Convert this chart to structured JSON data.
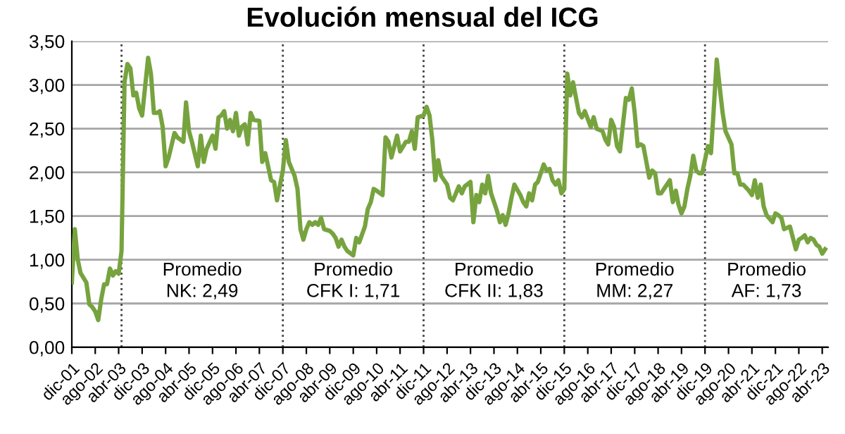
{
  "chart_data": {
    "type": "line",
    "title": "Evolución mensual del ICG",
    "series": [
      {
        "color": "#77a33f",
        "x": [
          "2001-12",
          "2002-01",
          "2002-02",
          "2002-03",
          "2002-05",
          "2002-06",
          "2002-07",
          "2002-08",
          "2002-09",
          "2002-10",
          "2002-11",
          "2002-12",
          "2003-01",
          "2003-02",
          "2003-03",
          "2003-04",
          "2003-05",
          "2003-06",
          "2003-07",
          "2003-08",
          "2003-09",
          "2003-10",
          "2003-11",
          "2003-12",
          "2004-01",
          "2004-02",
          "2004-03",
          "2004-04",
          "2004-05",
          "2004-06",
          "2004-07",
          "2004-08",
          "2004-09",
          "2004-11",
          "2004-12",
          "2005-02",
          "2005-03",
          "2005-04",
          "2005-05",
          "2005-07",
          "2005-08",
          "2005-09",
          "2005-10",
          "2005-12",
          "2006-01",
          "2006-02",
          "2006-03",
          "2006-04",
          "2006-05",
          "2006-06",
          "2006-07",
          "2006-08",
          "2006-09",
          "2006-10",
          "2006-11",
          "2006-12",
          "2007-01",
          "2007-02",
          "2007-04",
          "2007-05",
          "2007-06",
          "2007-07",
          "2007-08",
          "2007-09",
          "2007-10",
          "2007-12",
          "2008-01",
          "2008-02",
          "2008-04",
          "2008-05",
          "2008-06",
          "2008-07",
          "2008-08",
          "2008-09",
          "2008-10",
          "2008-11",
          "2008-12",
          "2009-01",
          "2009-02",
          "2009-04",
          "2009-05",
          "2009-06",
          "2009-07",
          "2009-08",
          "2009-09",
          "2009-10",
          "2009-12",
          "2010-01",
          "2010-02",
          "2010-04",
          "2010-05",
          "2010-06",
          "2010-07",
          "2010-08",
          "2010-10",
          "2010-11",
          "2010-12",
          "2011-01",
          "2011-02",
          "2011-03",
          "2011-04",
          "2011-06",
          "2011-07",
          "2011-08",
          "2011-09",
          "2011-10",
          "2011-12",
          "2012-01",
          "2012-02",
          "2012-03",
          "2012-04",
          "2012-05",
          "2012-06",
          "2012-08",
          "2012-09",
          "2012-10",
          "2012-11",
          "2012-12",
          "2013-01",
          "2013-02",
          "2013-04",
          "2013-05",
          "2013-06",
          "2013-07",
          "2013-08",
          "2013-09",
          "2013-10",
          "2013-11",
          "2014-01",
          "2014-02",
          "2014-03",
          "2014-04",
          "2014-05",
          "2014-06",
          "2014-07",
          "2014-09",
          "2014-10",
          "2014-11",
          "2014-12",
          "2015-01",
          "2015-02",
          "2015-03",
          "2015-05",
          "2015-06",
          "2015-07",
          "2015-08",
          "2015-09",
          "2015-10",
          "2015-11",
          "2015-12",
          "2016-01",
          "2016-02",
          "2016-03",
          "2016-04",
          "2016-05",
          "2016-06",
          "2016-07",
          "2016-09",
          "2016-10",
          "2016-11",
          "2017-01",
          "2017-02",
          "2017-03",
          "2017-04",
          "2017-05",
          "2017-06",
          "2017-07",
          "2017-08",
          "2017-09",
          "2017-10",
          "2017-11",
          "2017-12",
          "2018-01",
          "2018-02",
          "2018-03",
          "2018-04",
          "2018-05",
          "2018-06",
          "2018-07",
          "2018-08",
          "2018-09",
          "2018-10",
          "2018-12",
          "2019-01",
          "2019-02",
          "2019-03",
          "2019-04",
          "2019-05",
          "2019-06",
          "2019-07",
          "2019-08",
          "2019-09",
          "2019-10",
          "2019-11",
          "2020-01",
          "2020-02",
          "2020-03",
          "2020-04",
          "2020-05",
          "2020-06",
          "2020-07",
          "2020-09",
          "2020-10",
          "2020-11",
          "2020-12",
          "2021-01",
          "2021-03",
          "2021-04",
          "2021-05",
          "2021-06",
          "2021-07",
          "2021-08",
          "2021-09",
          "2021-11",
          "2021-12",
          "2022-01",
          "2022-02",
          "2022-03",
          "2022-05",
          "2022-06",
          "2022-07",
          "2022-08",
          "2022-09",
          "2022-10",
          "2022-11",
          "2022-12",
          "2023-01",
          "2023-02",
          "2023-03",
          "2023-04",
          "2023-05"
        ],
        "values": [
          0.74,
          1.35,
          1.0,
          0.85,
          0.74,
          0.49,
          0.46,
          0.41,
          0.31,
          0.54,
          0.72,
          0.72,
          0.9,
          0.82,
          0.87,
          0.84,
          1.1,
          3.03,
          3.24,
          3.19,
          2.88,
          2.91,
          2.73,
          2.65,
          2.98,
          3.31,
          3.13,
          2.68,
          2.68,
          2.7,
          2.52,
          2.07,
          2.17,
          2.45,
          2.4,
          2.35,
          2.8,
          2.47,
          2.35,
          2.07,
          2.42,
          2.12,
          2.27,
          2.42,
          2.27,
          2.63,
          2.65,
          2.7,
          2.5,
          2.6,
          2.47,
          2.68,
          2.42,
          2.52,
          2.55,
          2.32,
          2.68,
          2.6,
          2.59,
          2.12,
          2.22,
          2.07,
          1.91,
          1.89,
          1.68,
          2.02,
          2.37,
          2.12,
          1.96,
          1.81,
          1.35,
          1.23,
          1.35,
          1.43,
          1.4,
          1.43,
          1.4,
          1.48,
          1.35,
          1.33,
          1.3,
          1.25,
          1.15,
          1.23,
          1.15,
          1.1,
          1.05,
          1.25,
          1.2,
          1.38,
          1.58,
          1.66,
          1.81,
          1.79,
          1.74,
          2.4,
          2.35,
          2.17,
          2.3,
          2.42,
          2.24,
          2.35,
          2.35,
          2.47,
          2.27,
          2.63,
          2.65,
          2.75,
          2.65,
          2.37,
          1.91,
          2.14,
          1.96,
          1.86,
          1.71,
          1.68,
          1.76,
          1.84,
          1.76,
          1.84,
          1.89,
          1.43,
          1.74,
          1.66,
          1.86,
          1.76,
          1.96,
          1.76,
          1.56,
          1.43,
          1.51,
          1.4,
          1.53,
          1.71,
          1.86,
          1.74,
          1.66,
          1.61,
          1.76,
          1.68,
          1.86,
          1.89,
          2.09,
          2.02,
          2.04,
          1.91,
          1.86,
          1.91,
          1.76,
          1.81,
          3.13,
          2.88,
          3.03,
          2.85,
          2.68,
          2.63,
          2.7,
          2.52,
          2.63,
          2.5,
          2.47,
          2.37,
          2.32,
          2.6,
          2.52,
          2.3,
          2.24,
          2.55,
          2.85,
          2.83,
          2.96,
          2.68,
          2.3,
          2.32,
          2.3,
          2.12,
          1.94,
          2.02,
          1.99,
          1.76,
          1.76,
          1.81,
          1.91,
          1.66,
          1.79,
          1.63,
          1.53,
          1.61,
          1.81,
          1.96,
          2.19,
          2.02,
          1.99,
          1.99,
          2.3,
          2.22,
          2.73,
          3.29,
          2.98,
          2.68,
          2.47,
          2.32,
          1.99,
          1.99,
          1.86,
          1.86,
          1.79,
          1.74,
          1.91,
          1.71,
          1.86,
          1.61,
          1.51,
          1.43,
          1.53,
          1.51,
          1.48,
          1.35,
          1.38,
          1.25,
          1.12,
          1.23,
          1.25,
          1.28,
          1.2,
          1.25,
          1.23,
          1.17,
          1.15,
          1.07,
          1.12
        ]
      }
    ],
    "xlim": [
      "2001-12",
      "2023-06"
    ],
    "xticks": [
      {
        "value": "2001-12",
        "label": "dic-01"
      },
      {
        "value": "2002-08",
        "label": "ago-02"
      },
      {
        "value": "2003-04",
        "label": "abr-03"
      },
      {
        "value": "2003-12",
        "label": "dic-03"
      },
      {
        "value": "2004-08",
        "label": "ago-04"
      },
      {
        "value": "2005-04",
        "label": "abr-05"
      },
      {
        "value": "2005-12",
        "label": "dic-05"
      },
      {
        "value": "2006-08",
        "label": "ago-06"
      },
      {
        "value": "2007-04",
        "label": "abr-07"
      },
      {
        "value": "2007-12",
        "label": "dic-07"
      },
      {
        "value": "2008-08",
        "label": "ago-08"
      },
      {
        "value": "2009-04",
        "label": "abr-09"
      },
      {
        "value": "2009-12",
        "label": "dic-09"
      },
      {
        "value": "2010-08",
        "label": "ago-10"
      },
      {
        "value": "2011-04",
        "label": "abr-11"
      },
      {
        "value": "2011-12",
        "label": "dic-11"
      },
      {
        "value": "2012-08",
        "label": "ago-12"
      },
      {
        "value": "2013-04",
        "label": "abr-13"
      },
      {
        "value": "2013-12",
        "label": "dic-13"
      },
      {
        "value": "2014-08",
        "label": "ago-14"
      },
      {
        "value": "2015-04",
        "label": "abr-15"
      },
      {
        "value": "2015-12",
        "label": "dic-15"
      },
      {
        "value": "2016-08",
        "label": "ago-16"
      },
      {
        "value": "2017-04",
        "label": "abr-17"
      },
      {
        "value": "2017-12",
        "label": "dic-17"
      },
      {
        "value": "2018-08",
        "label": "ago-18"
      },
      {
        "value": "2019-04",
        "label": "abr-19"
      },
      {
        "value": "2019-12",
        "label": "dic-19"
      },
      {
        "value": "2020-08",
        "label": "ago-20"
      },
      {
        "value": "2021-04",
        "label": "abr-21"
      },
      {
        "value": "2021-12",
        "label": "dic-21"
      },
      {
        "value": "2022-08",
        "label": "ago-22"
      },
      {
        "value": "2023-04",
        "label": "abr-23"
      }
    ],
    "ylim": [
      0,
      3.5
    ],
    "yticks": [
      {
        "value": 0,
        "label": "0,00"
      },
      {
        "value": 0.5,
        "label": "0,50"
      },
      {
        "value": 1,
        "label": "1,00"
      },
      {
        "value": 1.5,
        "label": "1,50"
      },
      {
        "value": 2,
        "label": "2,00"
      },
      {
        "value": 2.5,
        "label": "2,50"
      },
      {
        "value": 3,
        "label": "3,00"
      },
      {
        "value": 3.5,
        "label": "3,50"
      }
    ],
    "grid": "y",
    "marker": "none",
    "line_style": "solid",
    "ref_lines": [
      {
        "axis": "x",
        "value": "2003-05",
        "color": "#404040",
        "line_style": "dotted"
      },
      {
        "axis": "x",
        "value": "2007-12",
        "color": "#404040",
        "line_style": "dotted"
      },
      {
        "axis": "x",
        "value": "2011-12",
        "color": "#404040",
        "line_style": "dotted"
      },
      {
        "axis": "x",
        "value": "2015-12",
        "color": "#404040",
        "line_style": "dotted"
      },
      {
        "axis": "x",
        "value": "2019-12",
        "color": "#404040",
        "line_style": "dotted"
      }
    ],
    "annotations": [
      "Promedio\nNK: 2,49",
      "Promedio\nCFK I: 1,71",
      "Promedio\nCFK II: 1,83",
      "Promedio\nMM: 2,27",
      "Promedio\nAF: 1,73"
    ]
  }
}
